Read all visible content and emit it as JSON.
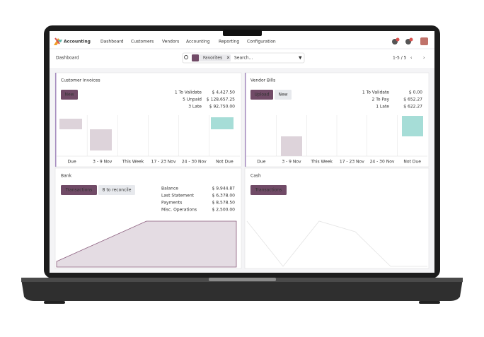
{
  "navbar": {
    "app": "Accounting",
    "menu": [
      "Dashboard",
      "Customers",
      "Vendors",
      "Accounting",
      "Reporting",
      "Configuration"
    ]
  },
  "control": {
    "title": "Dashboard",
    "facet": "Favorites",
    "search_placeholder": "Search...",
    "pager": "1-5 / 5"
  },
  "journals": [
    {
      "title": "Customer Invoices",
      "buttons": [
        "New"
      ],
      "stats": [
        {
          "label": "1 To Validate",
          "value": "$ 4,427.50"
        },
        {
          "label": "5 Unpaid",
          "value": "$ 128,657.25"
        },
        {
          "label": "3 Late",
          "value": "$ 92,750.00"
        }
      ],
      "columns": [
        "Due",
        "3 - 9 Nov",
        "This Week",
        "17 - 23 Nov",
        "24 - 30 Nov",
        "Not Due"
      ]
    },
    {
      "title": "Vendor Bills",
      "buttons": [
        "Upload",
        "New"
      ],
      "stats": [
        {
          "label": "1 To Validate",
          "value": "$ 0.00"
        },
        {
          "label": "2 To Pay",
          "value": "$ 652.27"
        },
        {
          "label": "1 Late",
          "value": "$ 622.27"
        }
      ],
      "columns": [
        "Due",
        "3 - 9 Nov",
        "This Week",
        "17 - 23 Nov",
        "24 - 30 Nov",
        "Not Due"
      ]
    },
    {
      "title": "Bank",
      "buttons": [
        "Transactions",
        "8 to reconcile"
      ],
      "stats": [
        {
          "label": "Balance",
          "value": "$ 9,944.87"
        },
        {
          "label": "Last Statement",
          "value": "$ 6,378.00"
        },
        {
          "label": "Payments",
          "value": "$ 8,578.50"
        },
        {
          "label": "Misc. Operations",
          "value": "$ 2,500.00"
        }
      ]
    },
    {
      "title": "Cash",
      "buttons": [
        "Transactions"
      ]
    }
  ]
}
